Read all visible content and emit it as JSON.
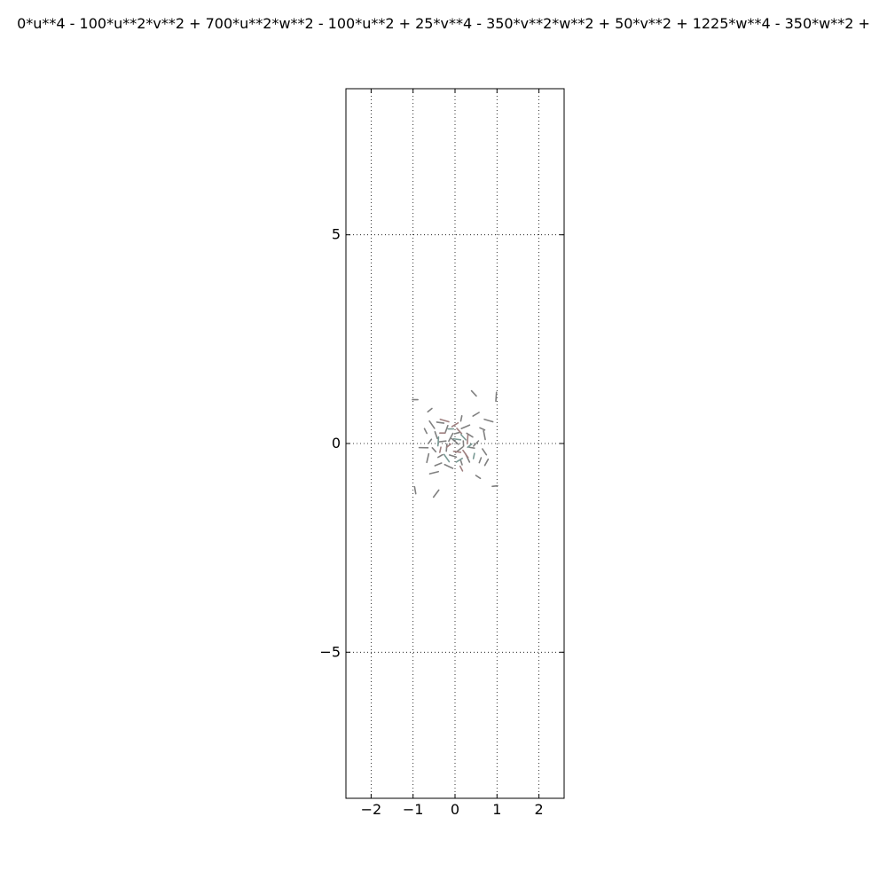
{
  "chart_data": {
    "type": "scatter",
    "title": "0*u**4 - 100*u**2*v**2 + 700*u**2*w**2 - 100*u**2 + 25*v**4 - 350*v**2*w**2 + 50*v**2 + 1225*w**4 - 350*w**2 +",
    "xlabel": "",
    "ylabel": "",
    "xlim": [
      -2.6,
      2.6
    ],
    "ylim": [
      -8.5,
      8.5
    ],
    "xticks": [
      -2,
      -1,
      0,
      1,
      2
    ],
    "yticks": [
      -5,
      0,
      5
    ],
    "xtick_labels": [
      "−2",
      "−1",
      "0",
      "1",
      "2"
    ],
    "ytick_labels": [
      "−5",
      "0",
      "5"
    ],
    "grid": true,
    "series": [
      {
        "color": "#808080",
        "points": [
          [
            -0.95,
            1.05
          ],
          [
            0.45,
            1.2
          ],
          [
            0.98,
            1.12
          ],
          [
            -0.6,
            0.8
          ],
          [
            -0.35,
            0.5
          ],
          [
            -0.55,
            0.45
          ],
          [
            0.15,
            0.6
          ],
          [
            0.5,
            0.7
          ],
          [
            0.8,
            0.55
          ],
          [
            -0.7,
            0.3
          ],
          [
            -0.2,
            0.35
          ],
          [
            0.25,
            0.4
          ],
          [
            0.65,
            0.35
          ],
          [
            -0.45,
            0.2
          ],
          [
            -0.1,
            0.15
          ],
          [
            0.05,
            0.25
          ],
          [
            0.35,
            0.2
          ],
          [
            0.7,
            0.2
          ],
          [
            -0.6,
            0.05
          ],
          [
            -0.3,
            0.05
          ],
          [
            0.0,
            0.05
          ],
          [
            0.2,
            0.0
          ],
          [
            0.5,
            0.0
          ],
          [
            -0.75,
            -0.1
          ],
          [
            -0.5,
            -0.15
          ],
          [
            -0.2,
            -0.1
          ],
          [
            0.1,
            -0.15
          ],
          [
            0.4,
            -0.1
          ],
          [
            0.7,
            -0.2
          ],
          [
            -0.65,
            -0.35
          ],
          [
            -0.35,
            -0.3
          ],
          [
            -0.05,
            -0.3
          ],
          [
            0.3,
            -0.35
          ],
          [
            0.6,
            -0.4
          ],
          [
            -0.4,
            -0.5
          ],
          [
            -0.15,
            -0.55
          ],
          [
            0.15,
            -0.45
          ],
          [
            0.75,
            -0.45
          ],
          [
            -0.5,
            -0.7
          ],
          [
            0.55,
            -0.8
          ],
          [
            -0.95,
            -1.12
          ],
          [
            -0.45,
            -1.2
          ],
          [
            0.95,
            -1.02
          ]
        ]
      },
      {
        "color": "#a08080",
        "points": [
          [
            -0.3,
            0.25
          ],
          [
            0.1,
            0.3
          ],
          [
            0.3,
            0.1
          ],
          [
            -0.15,
            -0.05
          ],
          [
            0.05,
            -0.2
          ],
          [
            0.25,
            -0.25
          ],
          [
            -0.35,
            -0.15
          ],
          [
            0.0,
            0.45
          ],
          [
            -0.25,
            0.55
          ],
          [
            0.15,
            -0.6
          ]
        ]
      },
      {
        "color": "#7a9a95",
        "points": [
          [
            -0.1,
            0.35
          ],
          [
            0.2,
            0.15
          ],
          [
            -0.4,
            0.05
          ],
          [
            0.35,
            -0.05
          ],
          [
            0.05,
            0.1
          ],
          [
            -0.2,
            -0.35
          ],
          [
            0.45,
            -0.3
          ],
          [
            0.1,
            -0.4
          ]
        ]
      }
    ]
  }
}
